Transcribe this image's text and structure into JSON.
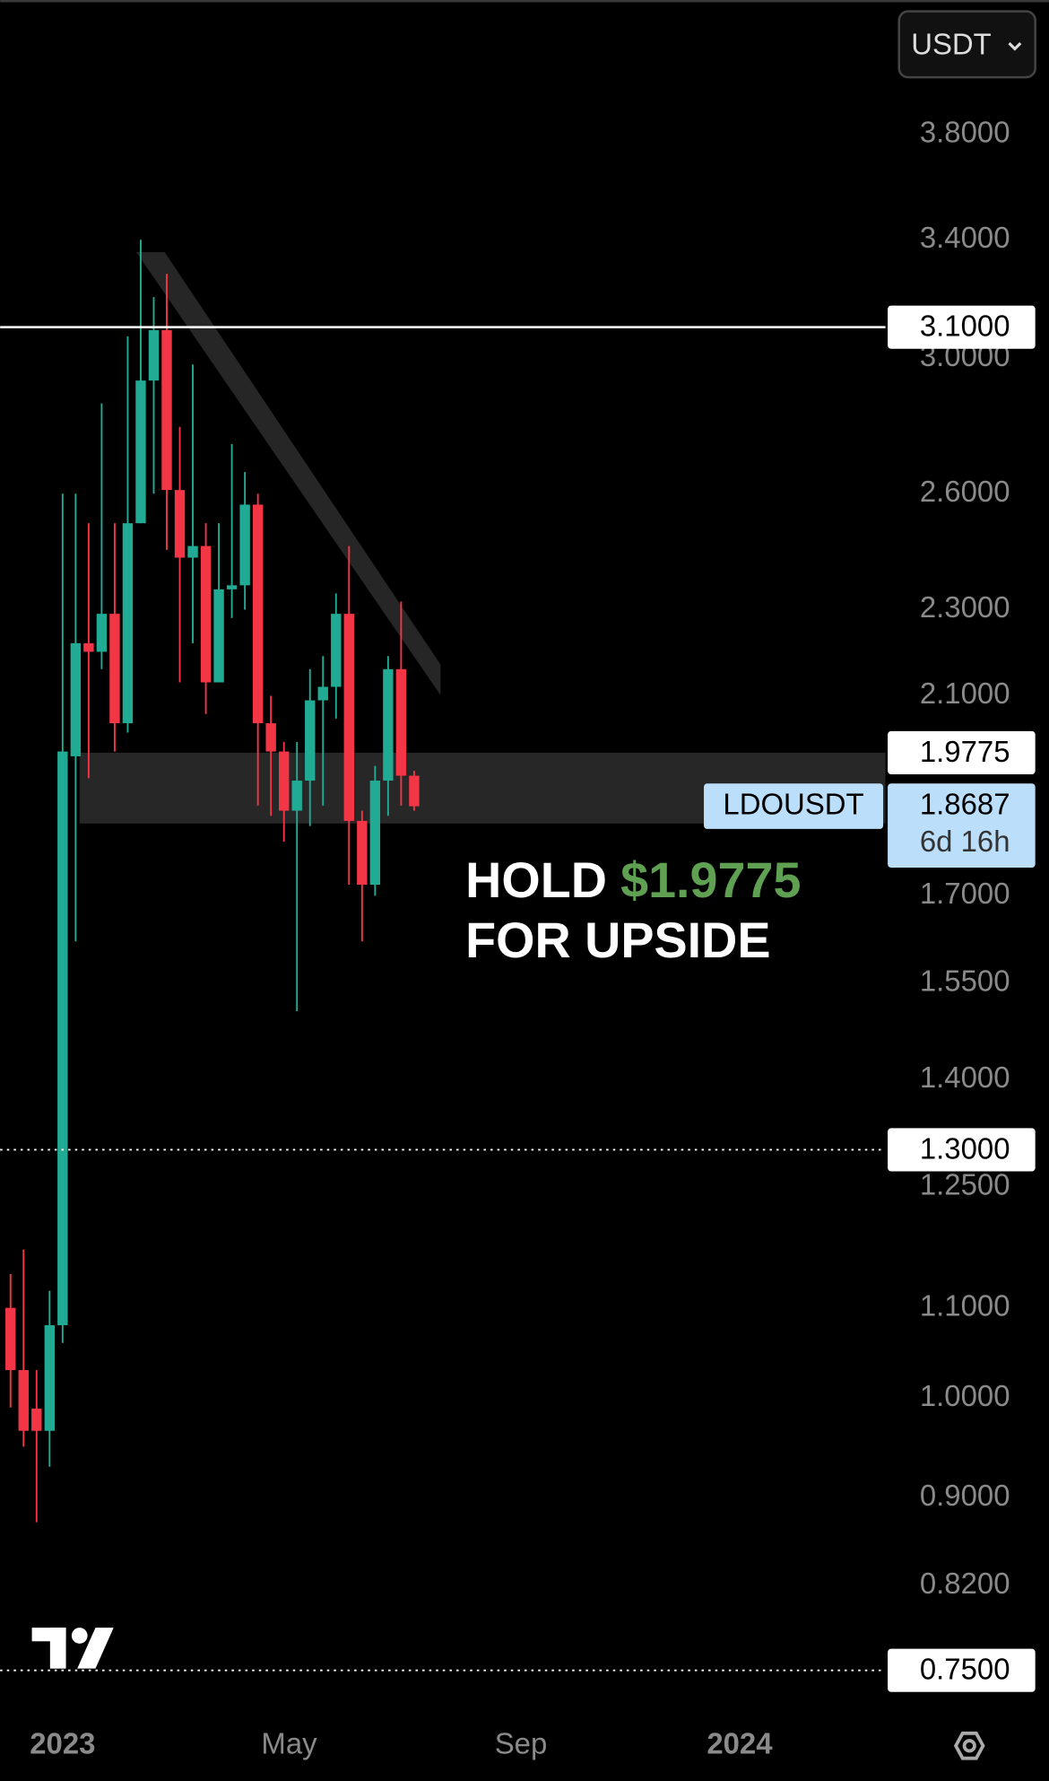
{
  "chart_data": {
    "type": "candlestick",
    "currency": "USDT",
    "log_scale": true,
    "up_color": "#22ab94",
    "down_color": "#f23645",
    "categories": [
      null,
      null,
      null,
      null,
      null,
      null,
      null,
      null,
      null,
      null,
      null,
      null,
      null,
      null,
      null,
      null,
      null,
      null,
      null,
      null,
      null,
      null,
      null,
      null,
      null,
      null,
      null,
      null,
      null,
      null,
      null,
      null
    ],
    "open": [
      1.1,
      1.03,
      0.989,
      0.966,
      1.08,
      1.97,
      2.22,
      2.2,
      2.29,
      2.04,
      2.52,
      2.93,
      3.09,
      2.61,
      2.43,
      2.46,
      2.13,
      2.35,
      2.36,
      2.57,
      2.04,
      1.98,
      1.86,
      1.92,
      2.09,
      2.12,
      2.29,
      1.84,
      1.72,
      1.92,
      2.16,
      1.93
    ],
    "high": [
      1.14,
      1.17,
      1.03,
      1.12,
      2.6,
      2.6,
      2.52,
      2.86,
      2.52,
      3.07,
      3.4,
      3.2,
      3.28,
      2.79,
      2.98,
      2.52,
      2.52,
      2.74,
      2.66,
      2.6,
      2.1,
      2.0,
      2.0,
      2.16,
      2.19,
      2.34,
      2.46,
      1.86,
      1.95,
      2.19,
      2.32,
      1.94
    ],
    "low": [
      0.99,
      0.95,
      0.877,
      0.93,
      1.06,
      1.62,
      1.925,
      2.16,
      1.98,
      2.02,
      2.52,
      2.6,
      2.45,
      2.13,
      2.22,
      2.06,
      2.13,
      2.28,
      2.3,
      1.87,
      1.85,
      1.8,
      1.505,
      1.83,
      1.87,
      2.05,
      1.72,
      1.62,
      1.7,
      1.85,
      1.87,
      1.86
    ],
    "close": [
      1.03,
      0.966,
      0.966,
      1.08,
      1.98,
      2.22,
      2.2,
      2.29,
      2.04,
      2.52,
      2.93,
      3.09,
      2.61,
      2.43,
      2.46,
      2.13,
      2.35,
      2.36,
      2.57,
      2.04,
      1.98,
      1.86,
      1.92,
      2.09,
      2.12,
      2.29,
      1.84,
      1.72,
      1.92,
      2.16,
      1.93,
      1.8687
    ],
    "xlim": [
      -0.8,
      67.2
    ],
    "xticks": [
      {
        "value": 4,
        "label": "2023"
      },
      {
        "value": 21.4,
        "label": "May"
      },
      {
        "value": 39.2,
        "label": "Sep"
      },
      {
        "value": 56,
        "label": "2024"
      }
    ],
    "ylim": [
      0.724,
      4.38
    ],
    "yticks": [
      {
        "value": 3.8,
        "label": "3.8000"
      },
      {
        "value": 3.4,
        "label": "3.4000"
      },
      {
        "value": 3.0,
        "label": "3.0000"
      },
      {
        "value": 2.6,
        "label": "2.6000"
      },
      {
        "value": 2.3,
        "label": "2.3000"
      },
      {
        "value": 2.1,
        "label": "2.1000"
      },
      {
        "value": 1.7,
        "label": "1.7000"
      },
      {
        "value": 1.55,
        "label": "1.5500"
      },
      {
        "value": 1.4,
        "label": "1.4000"
      },
      {
        "value": 1.25,
        "label": "1.2500"
      },
      {
        "value": 1.1,
        "label": "1.1000"
      },
      {
        "value": 1.0,
        "label": "1.0000"
      },
      {
        "value": 0.9,
        "label": "0.9000"
      },
      {
        "value": 0.82,
        "label": "0.8200"
      }
    ],
    "levels": [
      {
        "value": 3.1,
        "label": "3.1000",
        "style": "solid"
      },
      {
        "value": 1.3,
        "label": "1.3000",
        "style": "dotted"
      },
      {
        "value": 0.75,
        "label": "0.7500",
        "style": "dotted"
      }
    ],
    "zone": {
      "top": {
        "value": 1.9775,
        "label": "1.9775"
      },
      "bottom": 1.835
    },
    "last_price": {
      "value": 1.8687,
      "label": "1.8687",
      "symbol": "LDOUSDT",
      "countdown": "6d 16h"
    },
    "annotation": {
      "line1": "HOLD",
      "price": "$1.9775",
      "line2": "FOR UPSIDE"
    }
  }
}
